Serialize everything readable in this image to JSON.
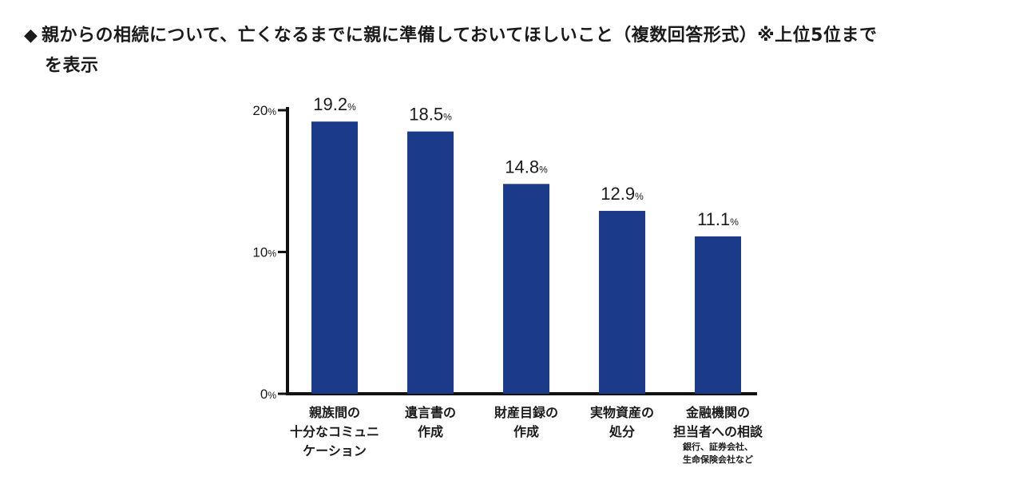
{
  "header": {
    "marker": "◆",
    "title_line1": "親からの相続について、亡くなるまでに親に準備しておいてほしいこと（複数回答形式）※上位5位まで",
    "title_line2": "を表示"
  },
  "colors": {
    "bar": "#1b3a8a",
    "axis": "#111111",
    "text": "#1a1a1a"
  },
  "chart_data": {
    "type": "bar",
    "title": "親からの相続について、亡くなるまでに親に準備しておいてほしいこと（複数回答形式）※上位5位までを表示",
    "categories": [
      [
        "親族間の",
        "十分なコミュニ",
        "ケーション"
      ],
      [
        "遺言書の",
        "作成"
      ],
      [
        "財産目録の",
        "作成"
      ],
      [
        "実物資産の",
        "処分"
      ],
      [
        "金融機関の",
        "担当者への相談"
      ]
    ],
    "category_notes": [
      [],
      [],
      [],
      [],
      [
        "銀行、証券会社、",
        "生命保険会社など"
      ]
    ],
    "values": [
      19.2,
      18.5,
      14.8,
      12.9,
      11.1
    ],
    "value_labels": [
      "19.2",
      "18.5",
      "14.8",
      "12.9",
      "11.1"
    ],
    "unit": "%",
    "yticks": [
      0,
      10,
      20
    ],
    "ytick_labels": [
      "0",
      "10",
      "20"
    ],
    "ylim": [
      0,
      20
    ],
    "grid": false,
    "legend": "none"
  }
}
